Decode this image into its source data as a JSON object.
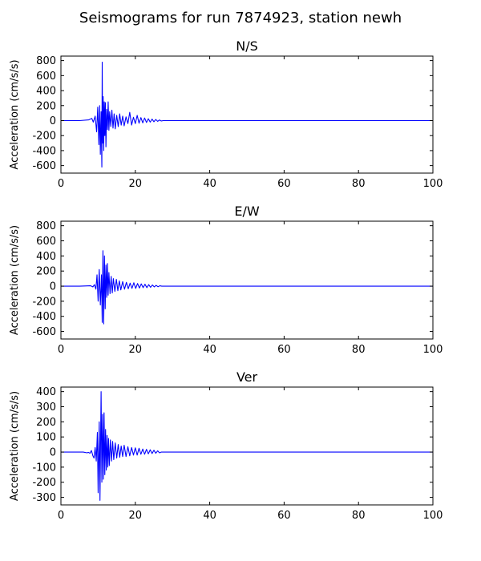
{
  "figure": {
    "title": "Seismograms for run 7874923, station newh"
  },
  "chart_data": [
    {
      "type": "line",
      "title": "N/S",
      "xlabel": "",
      "ylabel": "Acceleration (cm/s/s)",
      "xlim": [
        0,
        100
      ],
      "ylim": [
        -700,
        860
      ],
      "xticks": [
        0,
        20,
        40,
        60,
        80,
        100
      ],
      "yticks": [
        -600,
        -400,
        -200,
        0,
        200,
        400,
        600,
        800
      ],
      "color": "#0000ff",
      "grid": false,
      "series": [
        {
          "x": [
            0,
            5,
            7.5,
            8.3,
            8.7,
            9.2,
            9.6,
            9.9,
            10.2,
            10.4,
            10.6,
            10.8,
            11.0,
            11.1,
            11.2,
            11.35,
            11.5,
            11.65,
            11.8,
            11.95,
            12.1,
            12.3,
            12.5,
            12.7,
            12.9,
            13.1,
            13.4,
            13.7,
            14.0,
            14.3,
            14.6,
            15.0,
            15.4,
            15.8,
            16.2,
            16.6,
            17.0,
            17.5,
            18.0,
            18.5,
            19.0,
            19.5,
            20.0,
            20.5,
            21.0,
            21.5,
            22.0,
            22.5,
            23.0,
            23.5,
            24.0,
            24.5,
            25.0,
            25.5,
            26.0,
            26.5,
            27.0,
            27.5,
            30,
            100
          ],
          "y": [
            0,
            0,
            10,
            30,
            -20,
            60,
            -150,
            180,
            -320,
            200,
            -450,
            120,
            -620,
            780,
            -300,
            320,
            -400,
            250,
            -200,
            240,
            -350,
            150,
            -120,
            250,
            -130,
            120,
            -80,
            140,
            -100,
            90,
            -110,
            70,
            -80,
            90,
            -60,
            60,
            -70,
            50,
            -40,
            110,
            -60,
            45,
            -40,
            70,
            -35,
            40,
            -30,
            35,
            -25,
            25,
            -20,
            20,
            -15,
            15,
            -10,
            8,
            -5,
            0,
            0,
            0
          ]
        }
      ]
    },
    {
      "type": "line",
      "title": "E/W",
      "xlabel": "",
      "ylabel": "Acceleration (cm/s/s)",
      "xlim": [
        0,
        100
      ],
      "ylim": [
        -700,
        860
      ],
      "xticks": [
        0,
        20,
        40,
        60,
        80,
        100
      ],
      "yticks": [
        -600,
        -400,
        -200,
        0,
        200,
        400,
        600,
        800
      ],
      "color": "#0000ff",
      "grid": false,
      "series": [
        {
          "x": [
            0,
            5,
            8.0,
            8.6,
            9.0,
            9.4,
            9.7,
            10.0,
            10.3,
            10.6,
            10.9,
            11.1,
            11.3,
            11.5,
            11.7,
            11.9,
            12.1,
            12.3,
            12.5,
            12.7,
            12.9,
            13.2,
            13.5,
            13.8,
            14.1,
            14.5,
            14.9,
            15.3,
            15.7,
            16.1,
            16.6,
            17.1,
            17.6,
            18.1,
            18.6,
            19.1,
            19.6,
            20.1,
            20.6,
            21.1,
            21.6,
            22.1,
            22.6,
            23.1,
            23.6,
            24.1,
            24.6,
            25.1,
            25.6,
            26.1,
            26.6,
            27.1,
            30,
            100
          ],
          "y": [
            0,
            0,
            5,
            -10,
            20,
            -40,
            150,
            -200,
            220,
            -250,
            150,
            -480,
            470,
            -500,
            400,
            -300,
            280,
            -150,
            300,
            -120,
            180,
            -100,
            130,
            -90,
            100,
            -70,
            90,
            -60,
            70,
            -50,
            60,
            -40,
            50,
            -35,
            40,
            -30,
            45,
            -30,
            35,
            -25,
            30,
            -20,
            25,
            -20,
            20,
            -15,
            15,
            -10,
            10,
            -8,
            5,
            0,
            0,
            0
          ]
        }
      ]
    },
    {
      "type": "line",
      "title": "Ver",
      "xlabel": "",
      "ylabel": "Acceleration (cm/s/s)",
      "xlim": [
        0,
        100
      ],
      "ylim": [
        -350,
        430
      ],
      "xticks": [
        0,
        20,
        40,
        60,
        80,
        100
      ],
      "yticks": [
        -300,
        -200,
        -100,
        0,
        100,
        200,
        300,
        400
      ],
      "color": "#0000ff",
      "grid": false,
      "series": [
        {
          "x": [
            0,
            6,
            7.0,
            7.4,
            7.8,
            8.2,
            8.6,
            8.9,
            9.2,
            9.5,
            9.8,
            10.0,
            10.3,
            10.5,
            10.8,
            11.0,
            11.2,
            11.4,
            11.6,
            11.8,
            12.0,
            12.2,
            12.4,
            12.6,
            12.8,
            13.0,
            13.3,
            13.6,
            13.9,
            14.2,
            14.6,
            15.0,
            15.4,
            15.8,
            16.2,
            16.6,
            17.0,
            17.5,
            18.0,
            18.5,
            19.0,
            19.5,
            20.0,
            20.5,
            21.0,
            21.5,
            22.0,
            22.5,
            23.0,
            23.5,
            24.0,
            24.5,
            25.0,
            25.5,
            26.0,
            26.5,
            27.0,
            30,
            100
          ],
          "y": [
            0,
            0,
            -5,
            -2,
            -8,
            10,
            -25,
            -40,
            30,
            -60,
            130,
            -270,
            200,
            -320,
            400,
            -200,
            250,
            -180,
            260,
            -150,
            150,
            -120,
            110,
            -100,
            90,
            -90,
            80,
            -60,
            70,
            -50,
            60,
            -40,
            50,
            -35,
            40,
            -30,
            45,
            -30,
            35,
            -25,
            30,
            -20,
            28,
            -20,
            25,
            -15,
            20,
            -15,
            18,
            -12,
            15,
            -10,
            12,
            -8,
            8,
            -5,
            0,
            0,
            0
          ]
        }
      ]
    }
  ]
}
